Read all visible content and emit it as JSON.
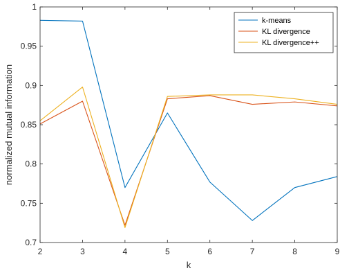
{
  "chart_data": {
    "type": "line",
    "title": "",
    "xlabel": "k",
    "ylabel": "normalized mutual information",
    "xlim": [
      2,
      9
    ],
    "ylim": [
      0.7,
      1.0
    ],
    "x_ticks": [
      2,
      3,
      4,
      5,
      6,
      7,
      8,
      9
    ],
    "y_ticks": [
      0.7,
      0.75,
      0.8,
      0.85,
      0.9,
      0.95,
      1.0
    ],
    "y_tick_labels": [
      "0.7",
      "0.75",
      "0.8",
      "0.85",
      "0.9",
      "0.95",
      "1"
    ],
    "grid": false,
    "legend_position": "top-right",
    "x": [
      2,
      3,
      4,
      5,
      6,
      7,
      8,
      9
    ],
    "series": [
      {
        "name": "k-means",
        "color": "#0072BD",
        "values": [
          0.983,
          0.982,
          0.77,
          0.865,
          0.777,
          0.728,
          0.77,
          0.784
        ]
      },
      {
        "name": "KL divergence",
        "color": "#D95319",
        "values": [
          0.851,
          0.88,
          0.722,
          0.883,
          0.887,
          0.876,
          0.879,
          0.874
        ]
      },
      {
        "name": "KL divergence++",
        "color": "#EDB120",
        "values": [
          0.855,
          0.898,
          0.719,
          0.886,
          0.888,
          0.888,
          0.883,
          0.876
        ]
      }
    ]
  }
}
